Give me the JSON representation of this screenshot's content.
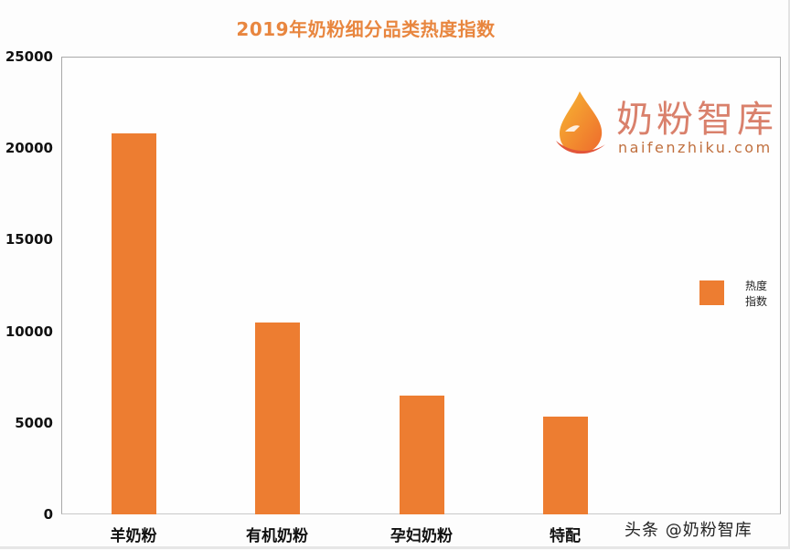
{
  "chart_data": {
    "type": "bar",
    "title": "2019年奶粉细分品类热度指数",
    "categories": [
      "羊奶粉",
      "有机奶粉",
      "孕妇奶粉",
      "特配"
    ],
    "series": [
      {
        "name": "热度指数",
        "color": "#ed7d31",
        "values": [
          20800,
          10500,
          6500,
          5350
        ]
      }
    ],
    "xlabel": "",
    "ylabel": "",
    "ylim": [
      0,
      25000
    ],
    "yticks": [
      "25000",
      "20000",
      "15000",
      "10000",
      "5000",
      "0"
    ],
    "grid": false,
    "legend_position": "right"
  },
  "legend": {
    "line1": "热度",
    "line2": "指数"
  },
  "logo": {
    "cn": "奶粉智库",
    "en": "naifenzhiku.com"
  },
  "watermark": "头条 @奶粉智库"
}
